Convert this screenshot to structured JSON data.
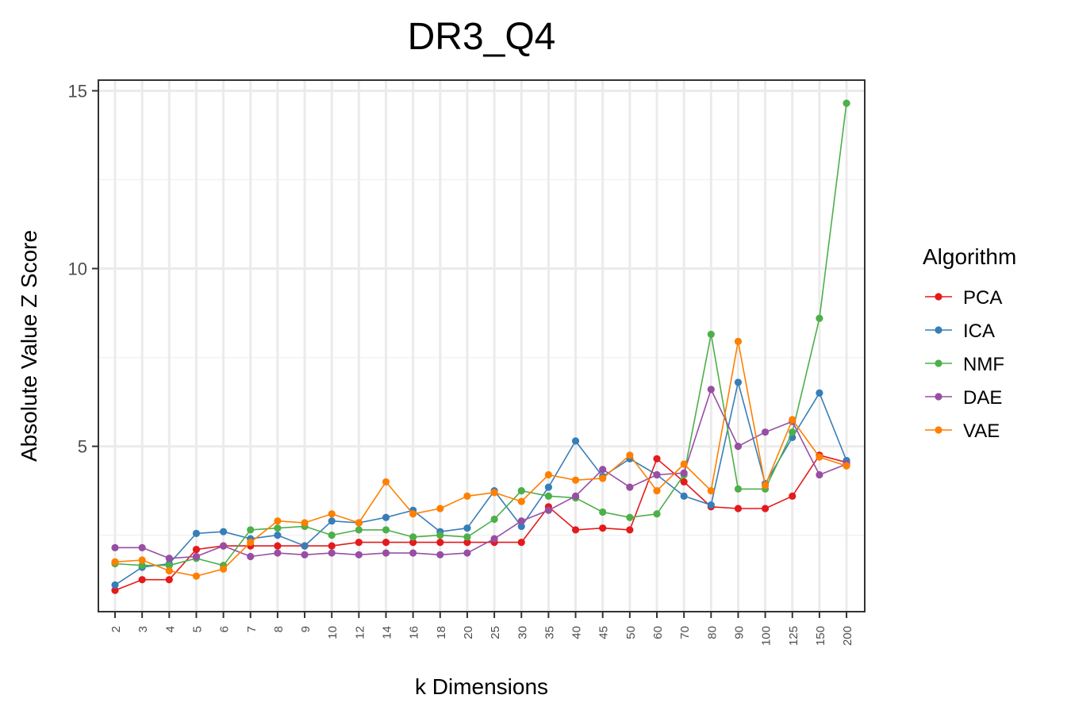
{
  "chart_data": {
    "type": "line",
    "title": "DR3_Q4",
    "xlabel": "k Dimensions",
    "ylabel": "Absolute Value Z Score",
    "categories": [
      "2",
      "3",
      "4",
      "5",
      "6",
      "7",
      "8",
      "9",
      "10",
      "12",
      "14",
      "16",
      "18",
      "20",
      "25",
      "30",
      "35",
      "40",
      "45",
      "50",
      "60",
      "70",
      "80",
      "90",
      "100",
      "125",
      "150",
      "200"
    ],
    "yticks": [
      5,
      10,
      15
    ],
    "ylim": [
      0.35,
      15.3
    ],
    "grid": true,
    "legend": {
      "title": "Algorithm",
      "position": "right"
    },
    "series": [
      {
        "name": "PCA",
        "color": "#e41a1c",
        "values": [
          0.95,
          1.25,
          1.25,
          2.1,
          2.2,
          2.2,
          2.2,
          2.2,
          2.2,
          2.3,
          2.3,
          2.3,
          2.3,
          2.3,
          2.3,
          2.3,
          3.3,
          2.65,
          2.7,
          2.65,
          4.65,
          4.0,
          3.3,
          3.25,
          3.25,
          3.6,
          4.75,
          4.55
        ]
      },
      {
        "name": "ICA",
        "color": "#377eb8",
        "values": [
          1.1,
          1.6,
          1.7,
          2.55,
          2.6,
          2.4,
          2.5,
          2.2,
          2.9,
          2.85,
          3.0,
          3.2,
          2.6,
          2.7,
          3.75,
          2.75,
          3.85,
          5.15,
          4.15,
          4.65,
          4.2,
          3.6,
          3.35,
          6.8,
          3.95,
          5.25,
          6.5,
          4.6
        ]
      },
      {
        "name": "NMF",
        "color": "#4daf4a",
        "values": [
          1.7,
          1.65,
          1.65,
          1.85,
          1.65,
          2.65,
          2.7,
          2.75,
          2.5,
          2.65,
          2.65,
          2.45,
          2.5,
          2.45,
          2.95,
          3.75,
          3.6,
          3.55,
          3.15,
          3.0,
          3.1,
          4.2,
          8.15,
          3.8,
          3.8,
          5.4,
          8.6,
          14.65
        ]
      },
      {
        "name": "DAE",
        "color": "#984ea3",
        "values": [
          2.15,
          2.15,
          1.85,
          1.9,
          2.2,
          1.9,
          2.0,
          1.95,
          2.0,
          1.95,
          2.0,
          2.0,
          1.95,
          2.0,
          2.4,
          2.9,
          3.2,
          3.6,
          4.35,
          3.85,
          4.2,
          4.25,
          6.6,
          5.0,
          5.4,
          5.7,
          4.2,
          4.5
        ]
      },
      {
        "name": "VAE",
        "color": "#ff7f00",
        "values": [
          1.75,
          1.8,
          1.5,
          1.35,
          1.55,
          2.3,
          2.9,
          2.85,
          3.1,
          2.85,
          4.0,
          3.1,
          3.25,
          3.6,
          3.7,
          3.45,
          4.2,
          4.05,
          4.1,
          4.75,
          3.75,
          4.5,
          3.75,
          7.95,
          3.9,
          5.75,
          4.7,
          4.45
        ]
      }
    ]
  }
}
